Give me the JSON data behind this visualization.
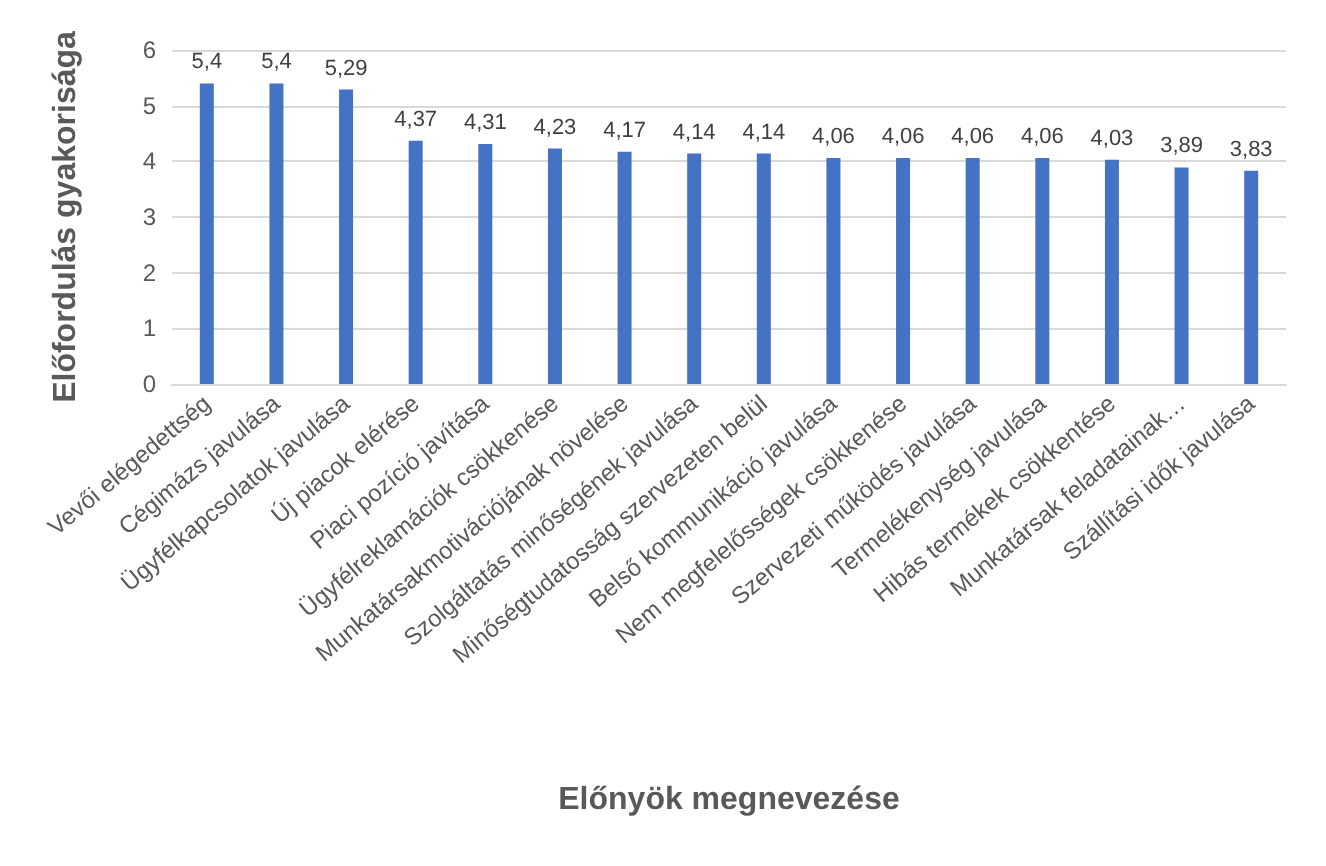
{
  "chart_data": {
    "type": "bar",
    "xlabel": "Előnyök megnevezése",
    "ylabel": "Előfordulás gyakorisága",
    "categories": [
      "Vevői elégedettség",
      "Cégimázs javulása",
      "Ügyfélkapcsolatok javulása",
      "Új piacok elérése",
      "Piaci pozíció javítása",
      "Ügyfélreklamációk csökkenése",
      "Munkatársakmotivációjának növelése",
      "Szolgáltatás minőségének javulása",
      "Minőségtudatosság szervezeten belül",
      "Belső kommunikáció javulása",
      "Nem megfelelősségek csökkenése",
      "Szervezeti működés javulása",
      "Termelékenység javulása",
      "Hibás termékek csökkentése",
      "Munkatársak feladatainak…",
      "Szállítási idők javulása"
    ],
    "values": [
      5.4,
      5.4,
      5.29,
      4.37,
      4.31,
      4.23,
      4.17,
      4.14,
      4.14,
      4.06,
      4.06,
      4.06,
      4.06,
      4.03,
      3.89,
      3.83
    ],
    "value_labels": [
      "5,4",
      "5,4",
      "5,29",
      "4,37",
      "4,31",
      "4,23",
      "4,17",
      "4,14",
      "4,14",
      "4,06",
      "4,06",
      "4,06",
      "4,06",
      "4,03",
      "3,89",
      "3,83"
    ],
    "color": "#4472c4",
    "ylim": [
      0,
      6
    ],
    "yticks": [
      0,
      1,
      2,
      3,
      4,
      5,
      6
    ],
    "grid": "y"
  }
}
